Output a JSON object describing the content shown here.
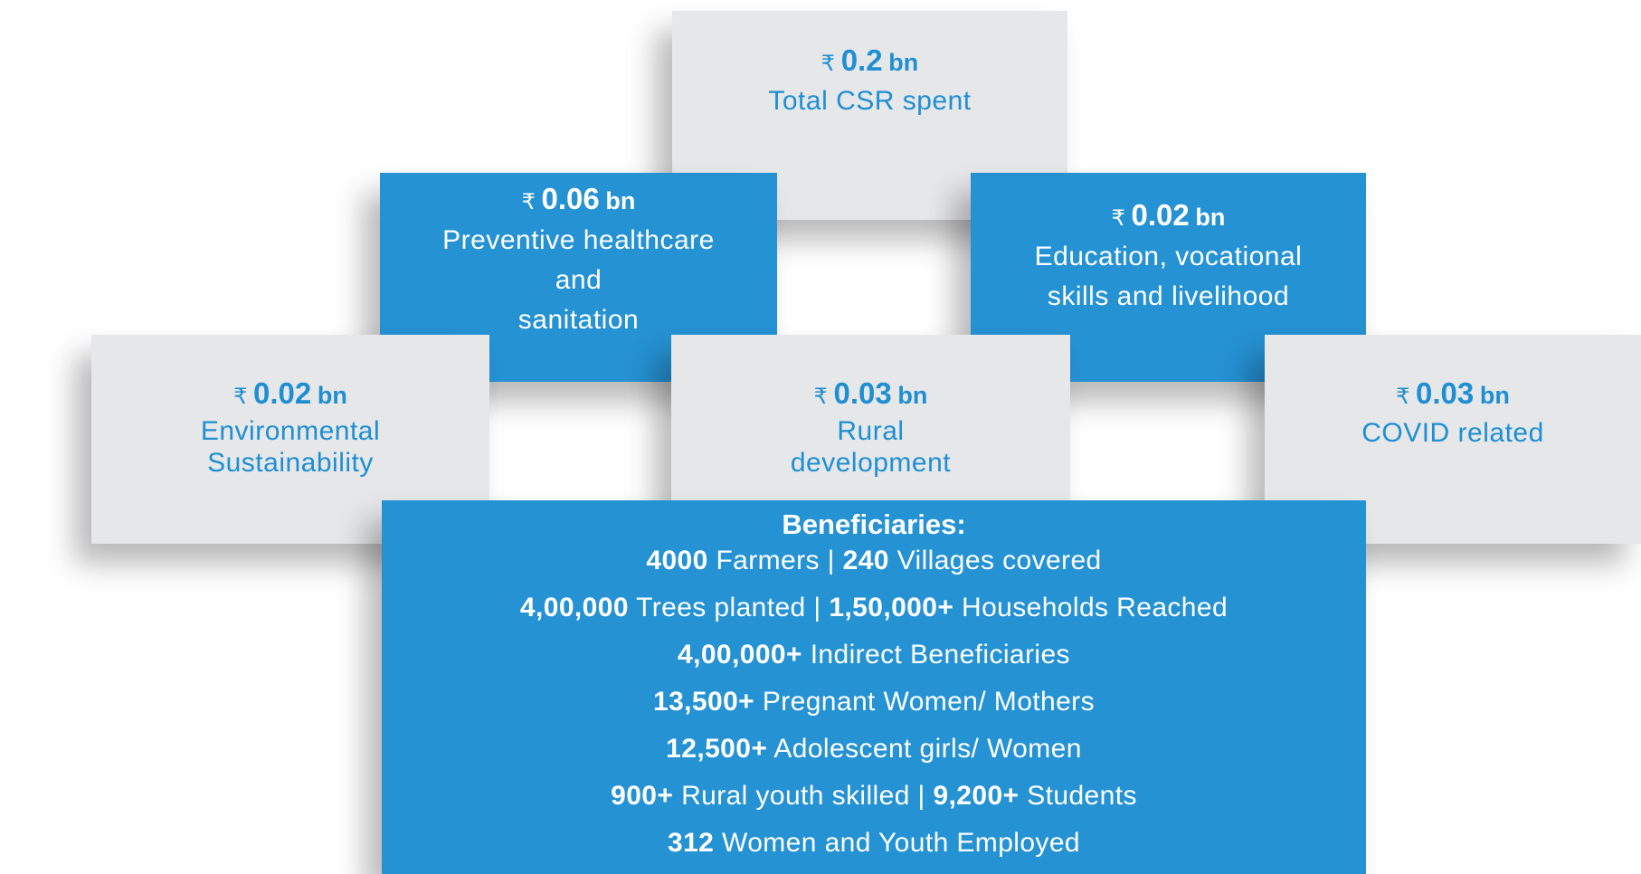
{
  "boxes": [
    {
      "currency": "₹",
      "amount": "0.2",
      "unit": "bn",
      "label": [
        "Total CSR spent"
      ],
      "style": "gray"
    },
    {
      "currency": "₹",
      "amount": "0.06",
      "unit": "bn",
      "label": [
        "Preventive healthcare",
        "and",
        "sanitation"
      ],
      "style": "blue"
    },
    {
      "currency": "₹",
      "amount": "0.02",
      "unit": "bn",
      "label": [
        "Education, vocational",
        "skills and livelihood"
      ],
      "style": "blue"
    },
    {
      "currency": "₹",
      "amount": "0.02",
      "unit": "bn",
      "label": [
        "Environmental",
        "Sustainability"
      ],
      "style": "gray"
    },
    {
      "currency": "₹",
      "amount": "0.03",
      "unit": "bn",
      "label": [
        "Rural",
        "development"
      ],
      "style": "gray"
    },
    {
      "currency": "₹",
      "amount": "0.03",
      "unit": "bn",
      "label": [
        "COVID related"
      ],
      "style": "gray"
    }
  ],
  "beneficiaries": {
    "title": "Beneficiaries:",
    "separator": "|",
    "lines": [
      [
        {
          "figure": "4000",
          "text": "Farmers"
        },
        {
          "figure": "240",
          "text": "Villages covered"
        }
      ],
      [
        {
          "figure": "4,00,000",
          "text": "Trees planted"
        },
        {
          "figure": "1,50,000+",
          "text": "Households Reached"
        }
      ],
      [
        {
          "figure": "4,00,000+",
          "text": "Indirect Beneficiaries"
        }
      ],
      [
        {
          "figure": "13,500+",
          "text": "Pregnant Women/ Mothers"
        }
      ],
      [
        {
          "figure": "12,500+",
          "text": "Adolescent girls/ Women"
        }
      ],
      [
        {
          "figure": "900+",
          "text": "Rural youth skilled"
        },
        {
          "figure": "9,200+",
          "text": "Students"
        }
      ],
      [
        {
          "figure": "312",
          "text": "Women and Youth Employed"
        }
      ]
    ]
  }
}
